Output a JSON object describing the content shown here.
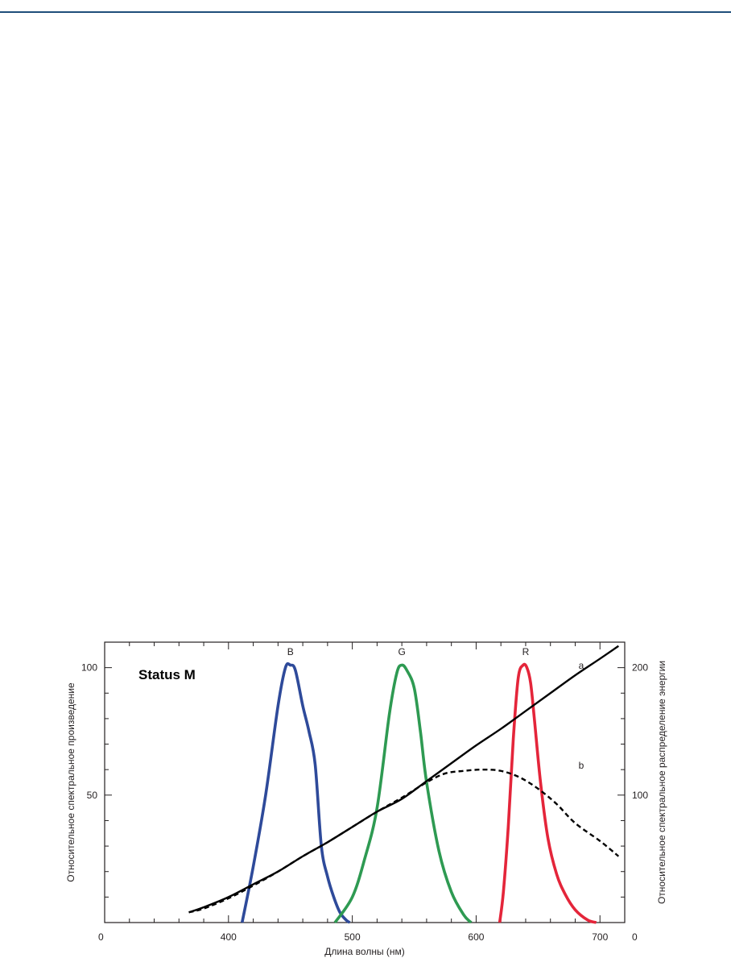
{
  "chart_data": {
    "type": "line",
    "title": "Status M",
    "xlabel": "Длина волны (нм)",
    "ylabel_left": "Относительное спектральное произведение",
    "ylabel_right": "Относительное спектральное распределение энергии",
    "x_ticks": [
      "0",
      "400",
      "500",
      "600",
      "700"
    ],
    "x_tick_values": [
      300,
      400,
      500,
      600,
      700
    ],
    "y_left_ticks": [
      "50",
      "100"
    ],
    "y_left_tick_values": [
      50,
      100
    ],
    "y_right_ticks": [
      "0",
      "100",
      "200"
    ],
    "y_right_tick_values": [
      0,
      100,
      200
    ],
    "xlim": [
      300,
      720
    ],
    "ylim_left": [
      0,
      110
    ],
    "ylim_right": [
      0,
      220
    ],
    "grid": false,
    "colors": {
      "B": "#2e4a9a",
      "G": "#2e9a52",
      "R": "#e4253a",
      "a": "#000000",
      "b": "#000000"
    },
    "series": [
      {
        "name": "B",
        "axis": "left",
        "style": "solid",
        "x": [
          411,
          420,
          430,
          440,
          446,
          450,
          454,
          460,
          465,
          470,
          475,
          480,
          485,
          490,
          495,
          498
        ],
        "y": [
          0,
          22,
          50,
          85,
          100,
          101,
          99,
          85,
          75,
          62,
          30,
          18,
          10,
          4,
          1,
          0
        ]
      },
      {
        "name": "G",
        "axis": "left",
        "style": "solid",
        "x": [
          486,
          500,
          510,
          520,
          530,
          536,
          540,
          544,
          550,
          555,
          560,
          570,
          580,
          590,
          596
        ],
        "y": [
          0,
          10,
          25,
          45,
          82,
          98,
          101,
          99,
          92,
          75,
          55,
          28,
          12,
          3,
          0
        ]
      },
      {
        "name": "R",
        "axis": "left",
        "style": "solid",
        "x": [
          619,
          622,
          626,
          630,
          634,
          638,
          641,
          644,
          647,
          652,
          658,
          665,
          672,
          680,
          690,
          697
        ],
        "y": [
          0,
          12,
          38,
          72,
          96,
          101,
          100,
          94,
          80,
          55,
          33,
          19,
          11,
          5,
          1,
          0
        ]
      },
      {
        "name": "a",
        "axis": "right",
        "style": "solid",
        "x": [
          368,
          380,
          400,
          420,
          440,
          460,
          480,
          500,
          520,
          540,
          560,
          580,
          600,
          620,
          640,
          660,
          680,
          700,
          715
        ],
        "y": [
          8,
          12,
          20,
          30,
          40,
          52,
          63,
          75,
          87,
          97,
          111,
          125,
          139,
          152,
          166,
          180,
          194,
          207,
          217
        ]
      },
      {
        "name": "b",
        "axis": "right",
        "style": "dashed",
        "x": [
          368,
          380,
          400,
          420,
          440,
          460,
          480,
          500,
          520,
          540,
          560,
          575,
          590,
          605,
          620,
          635,
          650,
          665,
          680,
          700,
          715
        ],
        "y": [
          8,
          11,
          19,
          29,
          40,
          52,
          63,
          75,
          87,
          98,
          110,
          117,
          119,
          120,
          119,
          114,
          105,
          93,
          78,
          64,
          52
        ]
      }
    ],
    "annotations": [
      {
        "text": "B",
        "x": 450
      },
      {
        "text": "G",
        "x": 540
      },
      {
        "text": "R",
        "x": 640
      },
      {
        "text": "a",
        "x": 700
      },
      {
        "text": "b",
        "x": 700
      }
    ]
  }
}
